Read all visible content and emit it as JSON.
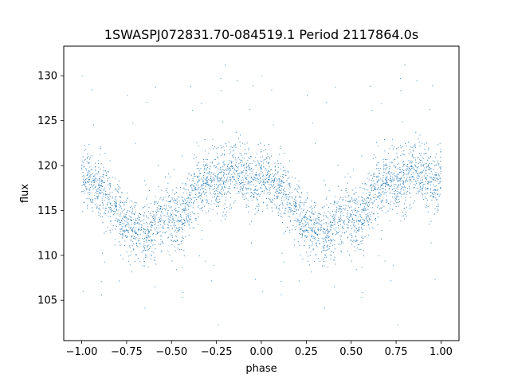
{
  "chart_data": {
    "type": "scatter",
    "title": "1SWASPJ072831.70-084519.1 Period 2117864.0s",
    "xlabel": "phase",
    "ylabel": "flux",
    "xlim": [
      -1.1,
      1.1
    ],
    "ylim": [
      100.5,
      133.3
    ],
    "x_ticks": [
      -1.0,
      -0.75,
      -0.5,
      -0.25,
      0.0,
      0.25,
      0.5,
      0.75,
      1.0
    ],
    "x_tick_labels": [
      "−1.00",
      "−0.75",
      "−0.50",
      "−0.25",
      "0.00",
      "0.25",
      "0.50",
      "0.75",
      "1.00"
    ],
    "y_ticks": [
      105,
      110,
      115,
      120,
      125,
      130
    ],
    "y_tick_labels": [
      "105",
      "110",
      "115",
      "120",
      "125",
      "130"
    ],
    "grid": false,
    "legend": "none",
    "marker_color": "#1f77b4",
    "series": [
      {
        "phase_flux_profile": [
          [
            0.0,
            118.5
          ],
          [
            0.05,
            118.3
          ],
          [
            0.1,
            117.8
          ],
          [
            0.15,
            116.5
          ],
          [
            0.2,
            114.8
          ],
          [
            0.25,
            113.5
          ],
          [
            0.3,
            112.8
          ],
          [
            0.35,
            112.5
          ],
          [
            0.4,
            113.2
          ],
          [
            0.45,
            114.2
          ],
          [
            0.5,
            114.0
          ],
          [
            0.55,
            113.6
          ],
          [
            0.6,
            115.5
          ],
          [
            0.65,
            117.5
          ],
          [
            0.7,
            118.6
          ],
          [
            0.75,
            118.2
          ],
          [
            0.8,
            118.4
          ],
          [
            0.85,
            119.2
          ],
          [
            0.9,
            118.8
          ],
          [
            0.95,
            118.5
          ],
          [
            1.0,
            118.5
          ]
        ],
        "scatter_sigma": 1.8,
        "outlier_range": [
          102,
          131.5
        ]
      }
    ]
  }
}
